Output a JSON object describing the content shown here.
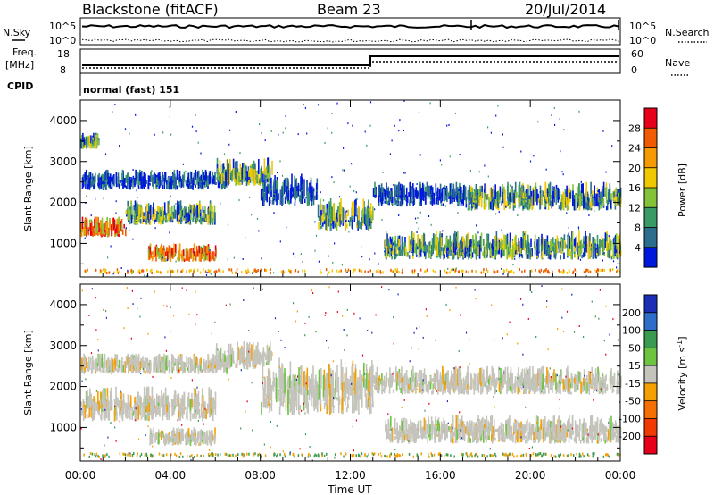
{
  "header": {
    "station": "Blackstone (fitACF)",
    "beam": "Beam 23",
    "date": "20/Jul/2014"
  },
  "noise_panel": {
    "left_label": "N.Sky",
    "right_label": "N.Search",
    "tick_top": "10^5",
    "tick_bottom": "10^0"
  },
  "freq_panel": {
    "left_label_1": "Freq.",
    "left_label_2": "[MHz]",
    "right_label": "Nave",
    "left_ticks": [
      "18",
      "8"
    ],
    "right_ticks": [
      "60",
      "0"
    ]
  },
  "cpid": {
    "label": "CPID",
    "mode": "normal (fast) 151"
  },
  "chart_data": [
    {
      "type": "heatmap",
      "name": "power",
      "ylabel": "Slant Range [km]",
      "ylim": [
        180,
        4500
      ],
      "y_ticks": [
        1000,
        2000,
        3000,
        4000
      ],
      "colorbar_label": "Power [dB]",
      "colorbar_ticks": [
        "28",
        "24",
        "20",
        "16",
        "12",
        "8",
        "4"
      ],
      "colorbar_colors": [
        "#e8001a",
        "#f25a00",
        "#f59a00",
        "#f0c800",
        "#84c23a",
        "#3a9a66",
        "#2d6e8e",
        "#0018dc"
      ],
      "echo_bands": [
        {
          "t0": 0.0,
          "t1": 2.0,
          "r0": 1150,
          "r1": 1650,
          "level": 3
        },
        {
          "t0": 2.0,
          "t1": 6.0,
          "r0": 1450,
          "r1": 2050,
          "level": 2
        },
        {
          "t0": 0.0,
          "t1": 6.5,
          "r0": 2300,
          "r1": 2800,
          "level": 1
        },
        {
          "t0": 0.0,
          "t1": 0.8,
          "r0": 3300,
          "r1": 3700,
          "level": 2
        },
        {
          "t0": 3.0,
          "t1": 6.0,
          "r0": 550,
          "r1": 1000,
          "level": 3
        },
        {
          "t0": 6.0,
          "t1": 8.5,
          "r0": 2400,
          "r1": 3100,
          "level": 2
        },
        {
          "t0": 8.0,
          "t1": 10.5,
          "r0": 1900,
          "r1": 2700,
          "level": 1
        },
        {
          "t0": 10.5,
          "t1": 13.0,
          "r0": 1300,
          "r1": 2100,
          "level": 2
        },
        {
          "t0": 13.0,
          "t1": 17.0,
          "r0": 1900,
          "r1": 2500,
          "level": 1
        },
        {
          "t0": 13.5,
          "t1": 24.0,
          "r0": 600,
          "r1": 1300,
          "level": 2
        },
        {
          "t0": 17.0,
          "t1": 24.0,
          "r0": 1800,
          "r1": 2500,
          "level": 2
        }
      ]
    },
    {
      "type": "heatmap",
      "name": "velocity",
      "ylabel": "Slant Range [km]",
      "xlabel": "Time UT",
      "ylim": [
        180,
        4500
      ],
      "y_ticks": [
        1000,
        2000,
        3000,
        4000
      ],
      "x_ticks": [
        "00:00",
        "04:00",
        "08:00",
        "12:00",
        "16:00",
        "20:00",
        "00:00"
      ],
      "colorbar_label": "Velocity [m s-1]",
      "colorbar_label_main": "Velocity [m s",
      "colorbar_label_exp": "-1",
      "colorbar_label_close": "]",
      "colorbar_ticks": [
        "200",
        "100",
        "50",
        "15",
        "-15",
        "-50",
        "-100",
        "-200"
      ],
      "colorbar_colors": [
        "#1a2fb4",
        "#2f6ec8",
        "#3a9a50",
        "#6cc440",
        "#c4c4bc",
        "#f4a000",
        "#f57000",
        "#f03a00",
        "#e8001a"
      ],
      "echo_bands": [
        {
          "t0": 0.0,
          "t1": 6.0,
          "r0": 1150,
          "r1": 2000,
          "level": 0
        },
        {
          "t0": 0.0,
          "t1": 6.5,
          "r0": 2300,
          "r1": 2800,
          "level": 0
        },
        {
          "t0": 6.0,
          "t1": 8.5,
          "r0": 2400,
          "r1": 3100,
          "level": 0
        },
        {
          "t0": 8.0,
          "t1": 13.0,
          "r0": 1300,
          "r1": 2700,
          "level": 0
        },
        {
          "t0": 13.0,
          "t1": 24.0,
          "r0": 1800,
          "r1": 2500,
          "level": 0
        },
        {
          "t0": 13.5,
          "t1": 24.0,
          "r0": 600,
          "r1": 1300,
          "level": 0
        },
        {
          "t0": 3.0,
          "t1": 6.0,
          "r0": 550,
          "r1": 1000,
          "level": 0
        }
      ]
    }
  ]
}
